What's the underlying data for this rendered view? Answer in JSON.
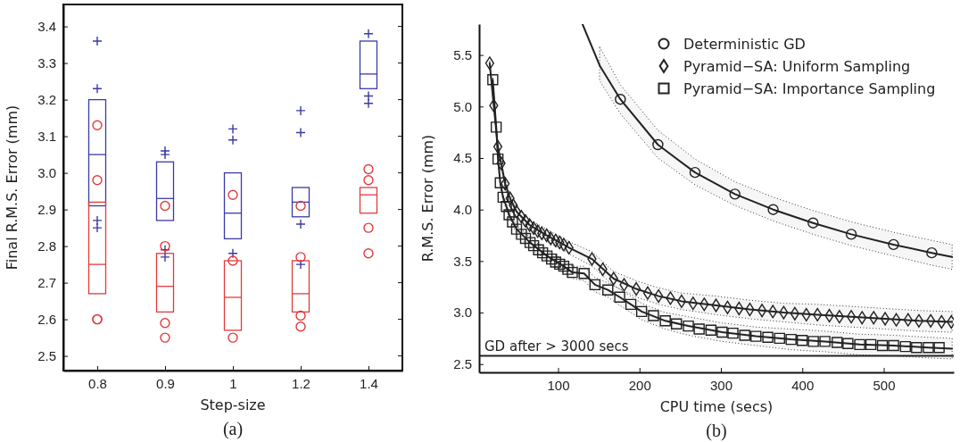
{
  "chart_data": [
    {
      "type": "box",
      "xlabel": "Step-size",
      "ylabel": "Final R.M.S. Error (mm)",
      "annotations": [
        "(a)"
      ],
      "categories": [
        "0.8",
        "0.9",
        "1",
        "1.2",
        "1.4"
      ],
      "ylim": [
        2.46,
        3.46
      ],
      "yticks": [
        2.5,
        2.6,
        2.7,
        2.8,
        2.9,
        {
          "value": 3,
          "label": "3.0"
        },
        3.1,
        3.2,
        3.3,
        3.4
      ],
      "series": [
        {
          "color": "#3b3ba6",
          "marker": "cross",
          "boxes": [
            {
              "low": 2.91,
              "q1": 2.91,
              "median": 3.05,
              "q3": 3.2,
              "high": 3.2,
              "outliers": [
                3.36,
                3.23,
                2.87,
                2.85
              ]
            },
            {
              "low": 2.87,
              "q1": 2.87,
              "median": 2.93,
              "q3": 3.03,
              "high": 3.03,
              "outliers": [
                3.06,
                3.05,
                2.79,
                2.77
              ]
            },
            {
              "low": 2.82,
              "q1": 2.82,
              "median": 2.89,
              "q3": 3.0,
              "high": 3.0,
              "outliers": [
                3.12,
                3.09,
                2.78
              ]
            },
            {
              "low": 2.88,
              "q1": 2.88,
              "median": 2.92,
              "q3": 2.96,
              "high": 2.96,
              "outliers": [
                3.17,
                3.11,
                2.86,
                2.75
              ]
            },
            {
              "low": 3.23,
              "q1": 3.23,
              "median": 3.27,
              "q3": 3.36,
              "high": 3.36,
              "outliers": [
                3.38,
                3.21,
                3.19
              ]
            }
          ]
        },
        {
          "color": "#e23b3b",
          "marker": "circle",
          "boxes": [
            {
              "low": 2.67,
              "q1": 2.67,
              "median": 2.75,
              "q3": 2.92,
              "high": 2.92,
              "outliers": [
                3.13,
                2.98,
                2.6,
                2.6
              ]
            },
            {
              "low": 2.62,
              "q1": 2.62,
              "median": 2.69,
              "q3": 2.78,
              "high": 2.78,
              "outliers": [
                2.91,
                2.8,
                2.59,
                2.55
              ]
            },
            {
              "low": 2.57,
              "q1": 2.57,
              "median": 2.66,
              "q3": 2.76,
              "high": 2.76,
              "outliers": [
                2.94,
                2.76,
                2.55
              ]
            },
            {
              "low": 2.62,
              "q1": 2.62,
              "median": 2.67,
              "q3": 2.76,
              "high": 2.76,
              "outliers": [
                2.91,
                2.77,
                2.61,
                2.58
              ]
            },
            {
              "low": 2.89,
              "q1": 2.89,
              "median": 2.94,
              "q3": 2.96,
              "high": 2.96,
              "outliers": [
                3.01,
                2.98,
                2.85,
                2.78
              ]
            }
          ]
        }
      ]
    },
    {
      "type": "line",
      "xlabel": "CPU time (secs)",
      "ylabel": "R.M.S. Error (mm)",
      "annotations": [
        "(b)"
      ],
      "xlim": [
        3,
        586
      ],
      "xticks": [
        100,
        200,
        300,
        400,
        500
      ],
      "ylim": [
        2.42,
        5.8
      ],
      "yticks": [
        2.5,
        {
          "value": 3,
          "label": "3.0"
        },
        3.5,
        {
          "value": 4,
          "label": "4.0"
        },
        4.5,
        {
          "value": 5,
          "label": "5.0"
        },
        5.5
      ],
      "legend": "top right",
      "ref_lines": [
        {
          "axis": "y",
          "value": 2.58,
          "label": "GD after > 3000 secs",
          "color": "#222222",
          "line_style": "solid"
        }
      ],
      "series": [
        {
          "name": "Deterministic GD",
          "type": "scatter",
          "marker": "circle",
          "color": "#222222",
          "x": [
            176.5,
            222.6,
            268.2,
            317.2,
            364.2,
            413.2,
            460.1,
            512,
            559
          ],
          "values": [
            5.07,
            4.63,
            4.36,
            4.15,
            4.0,
            3.87,
            3.76,
            3.66,
            3.58
          ]
        },
        {
          "name": "Pyramid−SA: Uniform Sampling",
          "type": "scatter",
          "marker": "diamond",
          "color": "#222222",
          "x": [
            16,
            21,
            26,
            30,
            35,
            41,
            45,
            49,
            55,
            60,
            65,
            70,
            75,
            80,
            86,
            91,
            97,
            102,
            107,
            113.4,
            141.6,
            154.9,
            168.2,
            181.1,
            196,
            210.1,
            223.4,
            238,
            251.7,
            265.8,
            279.5,
            294,
            308.1,
            322.3,
            335.5,
            350.5,
            363.8,
            377.1,
            390.8,
            404.9,
            418.6,
            433.2,
            445.6,
            460.1,
            473.4,
            487.6,
            501.7,
            515.4,
            529.9,
            543.2,
            557.7,
            571,
            583
          ],
          "values": [
            5.42,
            5.01,
            4.61,
            4.45,
            4.25,
            4.11,
            4.04,
            3.98,
            3.93,
            3.89,
            3.85,
            3.82,
            3.79,
            3.77,
            3.75,
            3.72,
            3.7,
            3.68,
            3.66,
            3.63,
            3.52,
            3.42,
            3.33,
            3.27,
            3.23,
            3.19,
            3.16,
            3.14,
            3.11,
            3.09,
            3.08,
            3.07,
            3.05,
            3.04,
            3.03,
            3.02,
            3.01,
            3.0,
            2.99,
            2.98,
            2.98,
            2.97,
            2.96,
            2.96,
            2.95,
            2.95,
            2.94,
            2.93,
            2.93,
            2.92,
            2.92,
            2.91,
            2.91
          ]
        },
        {
          "name": "Pyramid−SA: Importance Sampling",
          "type": "scatter",
          "marker": "square",
          "color": "#222222",
          "x": [
            19.8,
            24,
            26.2,
            29,
            32.4,
            36.5,
            39.8,
            44,
            49,
            55,
            60,
            65.6,
            70,
            76,
            81,
            86.4,
            92,
            97,
            102,
            107,
            112,
            117.5,
            132,
            145.3,
            161.1,
            175.7,
            189.4,
            202.6,
            217.2,
            231.7,
            245.4,
            260,
            273.3,
            287.8,
            301.5,
            314.8,
            329.3,
            343,
            357.6,
            372.1,
            386.2,
            399.9,
            413.6,
            427.8,
            442.7,
            456,
            470.5,
            484.2,
            498.4,
            512.1,
            526.6,
            540.3,
            554.8,
            568.1
          ],
          "values": [
            5.26,
            4.8,
            4.49,
            4.26,
            4.12,
            4.03,
            3.95,
            3.88,
            3.81,
            3.76,
            3.72,
            3.68,
            3.65,
            3.61,
            3.58,
            3.55,
            3.52,
            3.49,
            3.47,
            3.45,
            3.42,
            3.39,
            3.38,
            3.27,
            3.22,
            3.15,
            3.08,
            3.01,
            2.97,
            2.92,
            2.89,
            2.87,
            2.84,
            2.83,
            2.81,
            2.8,
            2.78,
            2.77,
            2.76,
            2.75,
            2.74,
            2.73,
            2.72,
            2.72,
            2.71,
            2.7,
            2.69,
            2.69,
            2.68,
            2.68,
            2.67,
            2.66,
            2.66,
            2.66
          ]
        },
        {
          "type": "line",
          "marker": "none",
          "line_style": "solid",
          "color": "#222222",
          "x": [
            130,
            151,
            176.5,
            222.6,
            268.2,
            317.2,
            364.2,
            413.2,
            460.1,
            512,
            559,
            584
          ],
          "values": [
            5.8,
            5.4,
            5.07,
            4.63,
            4.36,
            4.15,
            4.0,
            3.87,
            3.76,
            3.66,
            3.58,
            3.54
          ],
          "lower": [
            null,
            5.25,
            4.93,
            4.5,
            4.24,
            4.04,
            3.89,
            3.76,
            3.65,
            3.55,
            3.46,
            3.42
          ],
          "upper": [
            null,
            5.58,
            5.21,
            4.77,
            4.49,
            4.27,
            4.12,
            3.99,
            3.88,
            3.78,
            3.7,
            3.66
          ]
        },
        {
          "type": "line",
          "marker": "none",
          "line_style": "solid",
          "color": "#222222",
          "x": [
            16,
            21,
            26,
            30,
            35,
            41,
            49,
            65,
            86,
            107,
            113.4,
            141.6,
            168.2,
            196,
            223.4,
            251.7,
            294,
            335.5,
            377.1,
            418.6,
            460.1,
            501.7,
            543.2,
            584
          ],
          "values": [
            5.42,
            5.01,
            4.61,
            4.45,
            4.25,
            4.11,
            3.98,
            3.85,
            3.75,
            3.66,
            3.63,
            3.52,
            3.33,
            3.23,
            3.16,
            3.11,
            3.07,
            3.03,
            3.0,
            2.98,
            2.96,
            2.94,
            2.92,
            2.91
          ],
          "lower": [
            5.4,
            4.99,
            4.58,
            4.42,
            4.21,
            4.07,
            3.93,
            3.8,
            3.69,
            3.6,
            3.57,
            3.45,
            3.26,
            3.15,
            3.08,
            3.03,
            2.98,
            2.94,
            2.91,
            2.88,
            2.86,
            2.84,
            2.82,
            2.81
          ],
          "upper": [
            5.44,
            5.03,
            4.64,
            4.48,
            4.29,
            4.15,
            4.03,
            3.9,
            3.81,
            3.72,
            3.69,
            3.59,
            3.4,
            3.31,
            3.24,
            3.19,
            3.16,
            3.12,
            3.09,
            3.08,
            3.06,
            3.04,
            3.02,
            3.01
          ]
        },
        {
          "type": "line",
          "marker": "none",
          "line_style": "solid",
          "color": "#222222",
          "x": [
            19.8,
            24,
            26.2,
            29,
            32.4,
            36.5,
            39.8,
            49,
            65.6,
            86.4,
            107,
            117.5,
            132,
            145.3,
            161.1,
            175.7,
            189.4,
            202.6,
            231.7,
            260,
            301.5,
            343,
            386.2,
            427.8,
            470.5,
            512.1,
            554.8,
            584
          ],
          "values": [
            5.26,
            4.8,
            4.49,
            4.26,
            4.12,
            4.03,
            3.95,
            3.81,
            3.68,
            3.55,
            3.45,
            3.39,
            3.38,
            3.27,
            3.22,
            3.15,
            3.08,
            3.01,
            2.92,
            2.87,
            2.81,
            2.77,
            2.74,
            2.72,
            2.69,
            2.68,
            2.66,
            2.65
          ],
          "lower": [
            5.24,
            4.78,
            4.47,
            4.23,
            4.09,
            4.0,
            3.92,
            3.77,
            3.63,
            3.5,
            3.39,
            3.33,
            3.31,
            3.2,
            3.15,
            3.07,
            3.0,
            2.93,
            2.84,
            2.78,
            2.72,
            2.68,
            2.64,
            2.62,
            2.59,
            2.58,
            2.56,
            2.55
          ],
          "upper": [
            5.28,
            4.82,
            4.51,
            4.29,
            4.15,
            4.06,
            3.98,
            3.85,
            3.73,
            3.6,
            3.51,
            3.45,
            3.45,
            3.34,
            3.29,
            3.23,
            3.16,
            3.09,
            3.0,
            2.96,
            2.9,
            2.86,
            2.84,
            2.82,
            2.79,
            2.78,
            2.76,
            2.75
          ]
        }
      ]
    }
  ]
}
